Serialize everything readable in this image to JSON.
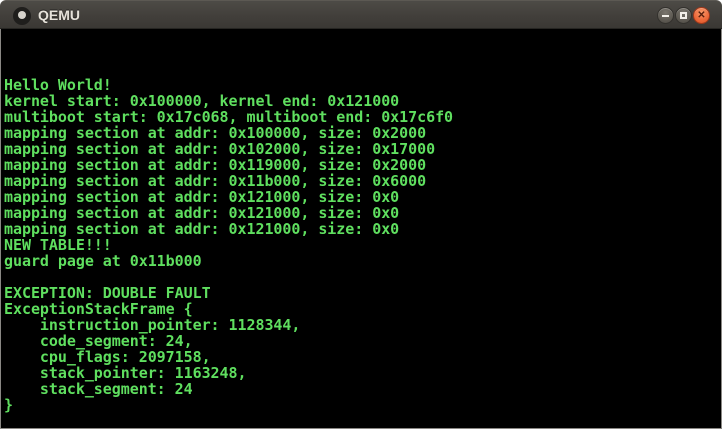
{
  "window": {
    "title": "QEMU",
    "controls": {
      "minimize_label": "minimize",
      "maximize_label": "maximize",
      "close_label": "close",
      "close_glyph": "✕"
    }
  },
  "colors": {
    "titlebar_bg": "#423f3b",
    "titlebar_text": "#e6e2da",
    "close_button": "#ee6b3c",
    "terminal_bg": "#000000",
    "terminal_text": "#5fdf5f",
    "window_border": "#8a8884"
  },
  "terminal": {
    "lines": [
      "",
      "",
      "",
      "Hello World!",
      "kernel start: 0x100000, kernel end: 0x121000",
      "multiboot start: 0x17c068, multiboot end: 0x17c6f0",
      "mapping section at addr: 0x100000, size: 0x2000",
      "mapping section at addr: 0x102000, size: 0x17000",
      "mapping section at addr: 0x119000, size: 0x2000",
      "mapping section at addr: 0x11b000, size: 0x6000",
      "mapping section at addr: 0x121000, size: 0x0",
      "mapping section at addr: 0x121000, size: 0x0",
      "mapping section at addr: 0x121000, size: 0x0",
      "NEW TABLE!!!",
      "guard page at 0x11b000",
      "",
      "EXCEPTION: DOUBLE FAULT",
      "ExceptionStackFrame {",
      "    instruction_pointer: 1128344,",
      "    code_segment: 24,",
      "    cpu_flags: 2097158,",
      "    stack_pointer: 1163248,",
      "    stack_segment: 24",
      "}"
    ]
  }
}
